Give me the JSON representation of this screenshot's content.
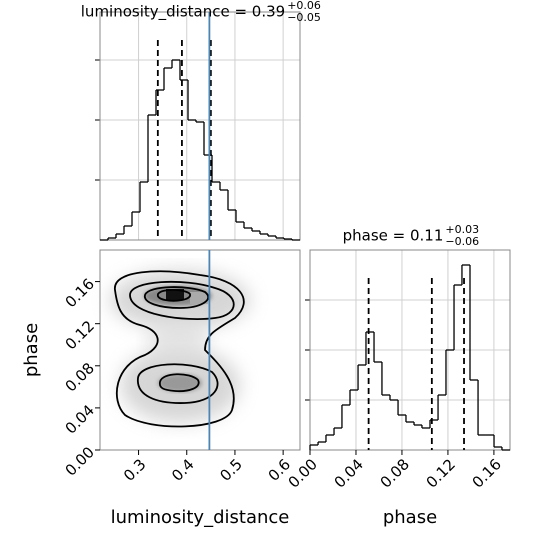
{
  "chart_data": [
    {
      "type": "histogram",
      "title": "luminosity_distance = 0.39",
      "title_plus": "+0.06",
      "title_minus": "−0.05",
      "bins": [
        0.22,
        0.2366,
        0.2532,
        0.2698,
        0.2864,
        0.303,
        0.3196,
        0.3362,
        0.3528,
        0.3694,
        0.386,
        0.4026,
        0.4192,
        0.4358,
        0.4524,
        0.469,
        0.4856,
        0.5022,
        0.5188,
        0.5354,
        0.552,
        0.5686,
        0.5852,
        0.6018,
        0.6184,
        0.635
      ],
      "counts": [
        0,
        2,
        6,
        14,
        28,
        58,
        125,
        150,
        172,
        180,
        160,
        120,
        118,
        85,
        58,
        50,
        30,
        18,
        12,
        9,
        6,
        4,
        2,
        1,
        0
      ],
      "xlim": [
        0.22,
        0.635
      ],
      "xticks": [
        0.3,
        0.4,
        0.5,
        0.6
      ],
      "ylim": [
        0,
        228
      ],
      "yticks": [
        60,
        120,
        180
      ],
      "quantiles": [
        0.34,
        0.39,
        0.45
      ],
      "truth": 0.447,
      "truth_color": "#4c84b4",
      "grid": true
    },
    {
      "type": "contour",
      "xlim": [
        0.22,
        0.635
      ],
      "xticks": [
        0.3,
        0.4,
        0.5,
        0.6
      ],
      "ylim": [
        0,
        0.19
      ],
      "yticks": [
        {
          "value": 0,
          "label": "0.00"
        },
        0.04,
        0.08,
        0.12,
        0.16
      ],
      "xlabel": "luminosity_distance",
      "ylabel": "phase",
      "truth": 0.447,
      "truth_color": "#4c84b4"
    },
    {
      "type": "histogram",
      "title": "phase = 0.11",
      "title_plus": "+0.03",
      "title_minus": "−0.06",
      "bins": [
        0,
        0.007,
        0.0139,
        0.0209,
        0.0278,
        0.0348,
        0.0418,
        0.0487,
        0.0557,
        0.0626,
        0.0696,
        0.0766,
        0.0835,
        0.0905,
        0.0974,
        0.1044,
        0.1114,
        0.1183,
        0.1253,
        0.1322,
        0.1392,
        0.1462,
        0.1531,
        0.1601,
        0.167,
        0.174
      ],
      "counts": [
        5,
        8,
        15,
        22,
        45,
        60,
        85,
        118,
        88,
        55,
        50,
        35,
        28,
        25,
        22,
        30,
        55,
        100,
        165,
        185,
        70,
        15,
        15,
        3,
        0
      ],
      "xlim": [
        0,
        0.174
      ],
      "xticks": [
        {
          "value": 0,
          "label": "0.00"
        },
        0.04,
        0.08,
        0.12,
        0.16
      ],
      "ylim": [
        0,
        200
      ],
      "yticks": [
        50,
        100,
        150
      ],
      "xlabel": "phase",
      "quantiles": [
        0.051,
        0.106,
        0.134
      ],
      "grid": true
    }
  ]
}
